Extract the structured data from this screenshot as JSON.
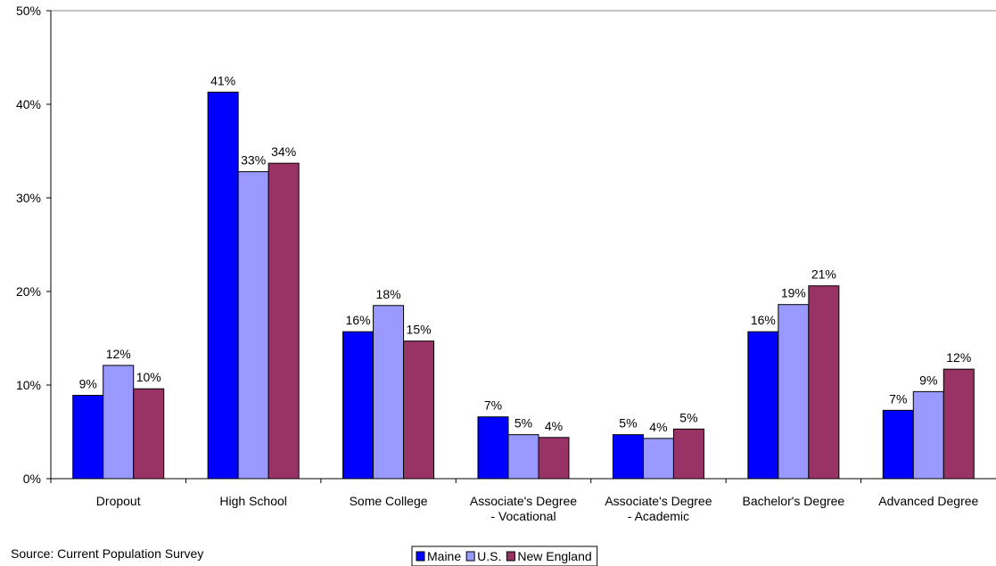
{
  "chart_data": {
    "type": "bar",
    "categories": [
      "Dropout",
      "High School",
      "Some College",
      "Associate's Degree\n- Vocational",
      "Associate's Degree\n- Academic",
      "Bachelor's Degree",
      "Advanced Degree"
    ],
    "series": [
      {
        "name": "Maine",
        "color": "#0000ff",
        "values": [
          8.9,
          41.3,
          15.7,
          6.6,
          4.7,
          15.7,
          7.3
        ],
        "value_labels": [
          "9%",
          "41%",
          "16%",
          "7%",
          "5%",
          "16%",
          "7%"
        ]
      },
      {
        "name": "U.S.",
        "color": "#9999ff",
        "values": [
          12.1,
          32.8,
          18.5,
          4.7,
          4.3,
          18.6,
          9.3
        ],
        "value_labels": [
          "12%",
          "33%",
          "18%",
          "5%",
          "4%",
          "19%",
          "9%"
        ]
      },
      {
        "name": "New England",
        "color": "#993366",
        "values": [
          9.6,
          33.7,
          14.7,
          4.4,
          5.3,
          20.6,
          11.7
        ],
        "value_labels": [
          "10%",
          "34%",
          "15%",
          "4%",
          "5%",
          "21%",
          "12%"
        ]
      }
    ],
    "ylim": [
      0,
      50
    ],
    "yticks": [
      {
        "value": 0,
        "label": "0%"
      },
      {
        "value": 10,
        "label": "10%"
      },
      {
        "value": 20,
        "label": "20%"
      },
      {
        "value": 30,
        "label": "30%"
      },
      {
        "value": 40,
        "label": "40%"
      },
      {
        "value": 50,
        "label": "50%"
      }
    ],
    "source": "Source:  Current Population Survey",
    "legend": "bottom"
  }
}
